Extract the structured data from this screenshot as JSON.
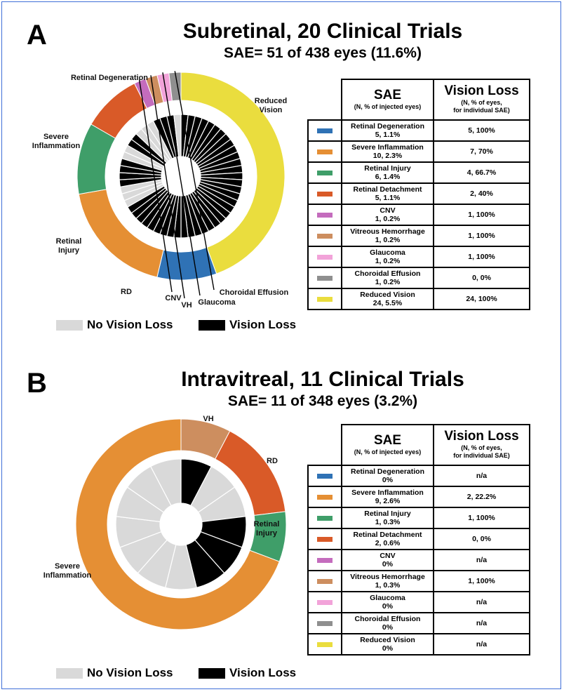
{
  "categories": [
    "Retinal Degeneration",
    "Severe Inflammation",
    "Retinal Injury",
    "Retinal Detachment",
    "CNV",
    "Vitreous Hemorrhage",
    "Glaucoma",
    "Choroidal Effusion",
    "Reduced Vision"
  ],
  "colors": {
    "Retinal Degeneration": "#2f72b5",
    "Severe Inflammation": "#e58f34",
    "Retinal Injury": "#3f9e69",
    "Retinal Detachment": "#d95a28",
    "CNV": "#c46cbd",
    "Vitreous Hemorrhage": "#cd8e5f",
    "Glaucoma": "#f2a3d9",
    "Choroidal Effusion": "#8f8f8f",
    "Reduced Vision": "#eadd3e",
    "no_vision_loss": "#d9d9d9",
    "vision_loss": "#000000"
  },
  "legend": {
    "no_vision_loss": "No Vision Loss",
    "vision_loss": "Vision Loss"
  },
  "table_header": {
    "sae": "SAE",
    "sae_sub": "(N, % of injected eyes)",
    "vl": "Vision Loss",
    "vl_sub1": "(N, % of eyes,",
    "vl_sub2": "for individual SAE)"
  },
  "panels": [
    {
      "letter": "A",
      "title": "Subretinal, 20 Clinical Trials",
      "subtitle": "SAE= 51 of 438 eyes (11.6%)",
      "table": [
        {
          "sae": "Retinal Degeneration",
          "count": "5, 1.1%",
          "vl": "5, 100%"
        },
        {
          "sae": "Severe Inflammation",
          "count": "10, 2.3%",
          "vl": "7, 70%"
        },
        {
          "sae": "Retinal Injury",
          "count": "6, 1.4%",
          "vl": "4, 66.7%"
        },
        {
          "sae": "Retinal Detachment",
          "count": "5, 1.1%",
          "vl": "2, 40%"
        },
        {
          "sae": "CNV",
          "count": "1, 0.2%",
          "vl": "1, 100%"
        },
        {
          "sae": "Vitreous Hemorrhage",
          "count": "1, 0.2%",
          "vl": "1, 100%"
        },
        {
          "sae": "Glaucoma",
          "count": "1, 0.2%",
          "vl": "1, 100%"
        },
        {
          "sae": "Choroidal Effusion",
          "count": "1, 0.2%",
          "vl": "0, 0%"
        },
        {
          "sae": "Reduced Vision",
          "count": "24, 5.5%",
          "vl": "24, 100%"
        }
      ],
      "donut_labels": [
        "Reduced\nVision",
        "Retinal Degeneration",
        "Severe\nInflammation",
        "Retinal\nInjury",
        "RD",
        "CNV",
        "VH",
        "Glaucoma",
        "Choroidal Effusion"
      ]
    },
    {
      "letter": "B",
      "title": "Intravitreal, 11 Clinical Trials",
      "subtitle": "SAE= 11 of 348 eyes (3.2%)",
      "table": [
        {
          "sae": "Retinal Degeneration",
          "count": "0%",
          "vl": "n/a"
        },
        {
          "sae": "Severe Inflammation",
          "count": "9, 2.6%",
          "vl": "2, 22.2%"
        },
        {
          "sae": "Retinal Injury",
          "count": "1, 0.3%",
          "vl": "1, 100%"
        },
        {
          "sae": "Retinal Detachment",
          "count": "2, 0.6%",
          "vl": "0, 0%"
        },
        {
          "sae": "CNV",
          "count": "0%",
          "vl": "n/a"
        },
        {
          "sae": "Vitreous Hemorrhage",
          "count": "1, 0.3%",
          "vl": "1, 100%"
        },
        {
          "sae": "Glaucoma",
          "count": "0%",
          "vl": "n/a"
        },
        {
          "sae": "Choroidal Effusion",
          "count": "0%",
          "vl": "n/a"
        },
        {
          "sae": "Reduced Vision",
          "count": "0%",
          "vl": "n/a"
        }
      ],
      "donut_labels": [
        "VH",
        "RD",
        "Retinal\nInjury",
        "Severe\nInflammation"
      ]
    }
  ],
  "chart_data": [
    {
      "type": "pie",
      "subtype": "nested donut",
      "title": "Subretinal, 20 Clinical Trials",
      "subtitle": "SAE= 51 of 438 eyes (11.6%)",
      "outer_ring": {
        "categories": [
          "Reduced Vision",
          "Retinal Degeneration",
          "Severe Inflammation",
          "Retinal Injury",
          "Retinal Detachment",
          "CNV",
          "Vitreous Hemorrhage",
          "Glaucoma",
          "Choroidal Effusion"
        ],
        "values": [
          24,
          5,
          10,
          6,
          5,
          1,
          1,
          1,
          1
        ]
      },
      "inner_ring": {
        "series": [
          {
            "name": "Vision Loss",
            "values": [
              24,
              5,
              7,
              4,
              2,
              1,
              1,
              1,
              0
            ]
          },
          {
            "name": "No Vision Loss",
            "values": [
              0,
              0,
              3,
              2,
              3,
              0,
              0,
              0,
              1
            ]
          }
        ]
      }
    },
    {
      "type": "pie",
      "subtype": "nested donut",
      "title": "Intravitreal, 11 Clinical Trials",
      "subtitle": "SAE= 11 of 348 eyes (3.2%)",
      "outer_ring": {
        "categories": [
          "Vitreous Hemorrhage",
          "Retinal Detachment",
          "Retinal Injury",
          "Severe Inflammation"
        ],
        "values": [
          1,
          2,
          1,
          9
        ]
      },
      "inner_ring": {
        "series": [
          {
            "name": "Vision Loss",
            "values": [
              1,
              0,
              1,
              2
            ]
          },
          {
            "name": "No Vision Loss",
            "values": [
              0,
              2,
              0,
              7
            ]
          }
        ]
      }
    }
  ]
}
